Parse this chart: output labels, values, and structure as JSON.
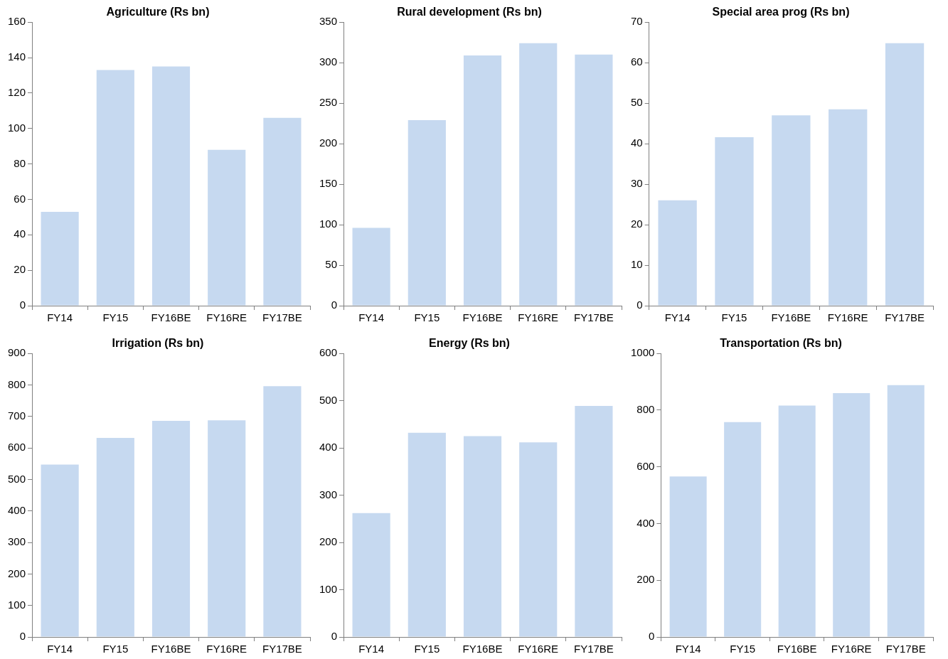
{
  "chart_data": [
    {
      "type": "bar",
      "title": "Agriculture (Rs bn)",
      "categories": [
        "FY14",
        "FY15",
        "FY16BE",
        "FY16RE",
        "FY17BE"
      ],
      "values": [
        53,
        133,
        135,
        88,
        106
      ],
      "color": "#c6d9f0",
      "ylim": [
        0,
        160
      ],
      "yticks": [
        0,
        20,
        40,
        60,
        80,
        100,
        120,
        140,
        160
      ]
    },
    {
      "type": "bar",
      "title": "Rural development (Rs bn)",
      "categories": [
        "FY14",
        "FY15",
        "FY16BE",
        "FY16RE",
        "FY17BE"
      ],
      "values": [
        96,
        229,
        309,
        324,
        310
      ],
      "color": "#c6d9f0",
      "ylim": [
        0,
        350
      ],
      "yticks": [
        0,
        50,
        100,
        150,
        200,
        250,
        300,
        350
      ]
    },
    {
      "type": "bar",
      "title": "Special area prog (Rs bn)",
      "categories": [
        "FY14",
        "FY15",
        "FY16BE",
        "FY16RE",
        "FY17BE"
      ],
      "values": [
        26,
        41.6,
        47,
        48.5,
        64.8
      ],
      "color": "#c6d9f0",
      "ylim": [
        0,
        70
      ],
      "yticks": [
        0,
        10,
        20,
        30,
        40,
        50,
        60,
        70
      ]
    },
    {
      "type": "bar",
      "title": "Irrigation (Rs bn)",
      "categories": [
        "FY14",
        "FY15",
        "FY16BE",
        "FY16RE",
        "FY17BE"
      ],
      "values": [
        547,
        632,
        686,
        688,
        796
      ],
      "color": "#c6d9f0",
      "ylim": [
        0,
        900
      ],
      "yticks": [
        0,
        100,
        200,
        300,
        400,
        500,
        600,
        700,
        800,
        900
      ]
    },
    {
      "type": "bar",
      "title": "Energy (Rs bn)",
      "categories": [
        "FY14",
        "FY15",
        "FY16BE",
        "FY16RE",
        "FY17BE"
      ],
      "values": [
        262,
        432,
        425,
        412,
        489
      ],
      "color": "#c6d9f0",
      "ylim": [
        0,
        600
      ],
      "yticks": [
        0,
        100,
        200,
        300,
        400,
        500,
        600
      ]
    },
    {
      "type": "bar",
      "title": "Transportation (Rs bn)",
      "categories": [
        "FY14",
        "FY15",
        "FY16BE",
        "FY16RE",
        "FY17BE"
      ],
      "values": [
        566,
        758,
        816,
        860,
        888
      ],
      "color": "#c6d9f0",
      "ylim": [
        0,
        1000
      ],
      "yticks": [
        0,
        200,
        400,
        600,
        800,
        1000
      ]
    }
  ]
}
